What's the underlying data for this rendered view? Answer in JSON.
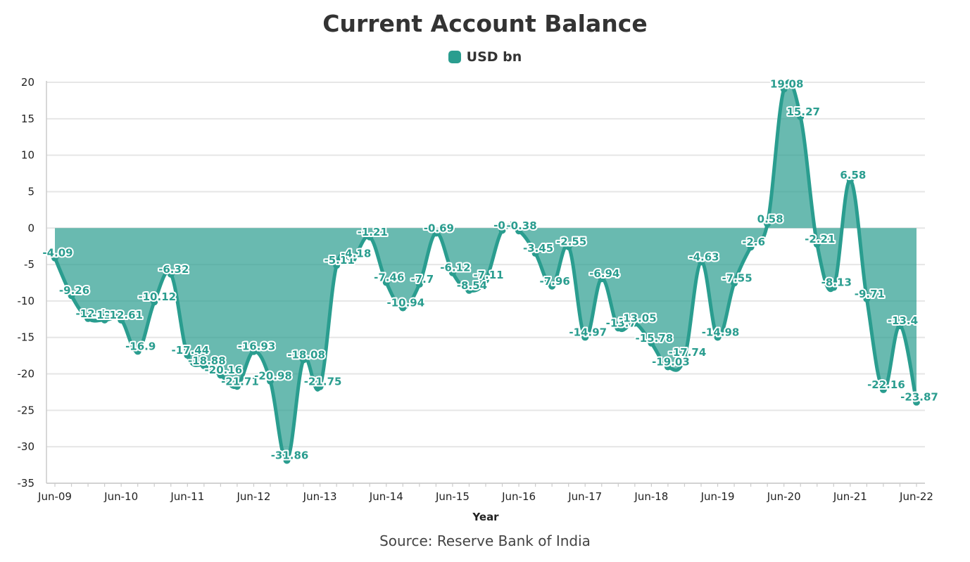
{
  "chart_data": {
    "type": "area",
    "title": "Current Account Balance",
    "xlabel": "Year",
    "ylabel": "",
    "source": "Source: Reserve Bank of India",
    "ylim": [
      -35,
      20
    ],
    "yticks": [
      20,
      15,
      10,
      5,
      0,
      -5,
      -10,
      -15,
      -20,
      -25,
      -30,
      -35
    ],
    "grid": true,
    "legend_position": "top-center",
    "color": "#2a9d8f",
    "x": [
      "Jun-09",
      "Sep-09",
      "Dec-09",
      "Mar-10",
      "Jun-10",
      "Sep-10",
      "Dec-10",
      "Mar-11",
      "Jun-11",
      "Sep-11",
      "Dec-11",
      "Mar-12",
      "Jun-12",
      "Sep-12",
      "Dec-12",
      "Mar-13",
      "Jun-13",
      "Sep-13",
      "Dec-13",
      "Mar-14",
      "Jun-14",
      "Sep-14",
      "Dec-14",
      "Mar-15",
      "Jun-15",
      "Sep-15",
      "Dec-15",
      "Mar-16",
      "Jun-16",
      "Sep-16",
      "Dec-16",
      "Mar-17",
      "Jun-17",
      "Sep-17",
      "Dec-17",
      "Mar-18",
      "Jun-18",
      "Sep-18",
      "Dec-18",
      "Mar-19",
      "Jun-19",
      "Sep-19",
      "Dec-19",
      "Mar-20",
      "Jun-20",
      "Sep-20",
      "Dec-20",
      "Mar-21",
      "Jun-21",
      "Sep-21",
      "Dec-21",
      "Mar-22",
      "Jun-22"
    ],
    "x_tick_labels": [
      "Jun-09",
      "Jun-10",
      "Jun-11",
      "Jun-12",
      "Jun-13",
      "Jun-14",
      "Jun-15",
      "Jun-16",
      "Jun-17",
      "Jun-18",
      "Jun-19",
      "Jun-20",
      "Jun-21",
      "Jun-22"
    ],
    "series": [
      {
        "name": "USD bn",
        "values": [
          -4.09,
          -9.26,
          -12.4,
          -12.6,
          -12.61,
          -16.9,
          -10.12,
          -6.32,
          -17.44,
          -18.88,
          -20.16,
          -21.71,
          -16.93,
          -20.98,
          -31.86,
          -18.08,
          -21.75,
          -5.11,
          -4.18,
          -1.21,
          -7.46,
          -10.94,
          -7.7,
          -0.69,
          -6.12,
          -8.54,
          -7.11,
          -0.3,
          -0.38,
          -3.45,
          -7.96,
          -2.55,
          -14.97,
          -6.94,
          -13.7,
          -13.05,
          -15.78,
          -19.03,
          -17.74,
          -4.63,
          -14.98,
          -7.55,
          -2.6,
          0.58,
          19.08,
          15.27,
          -2.21,
          -8.13,
          6.58,
          -9.71,
          -22.16,
          -13.4,
          -23.87
        ],
        "data_labels": [
          "-4.09",
          "-9.26",
          "-12.4",
          "-12.6",
          "-12.61",
          "-16.9",
          "-10.12",
          "-6.32",
          "-17.44",
          "-18.88",
          "-20.16",
          "-21.71",
          "-16.93",
          "-20.98",
          "-31.86",
          "-18.08",
          "-21.75",
          "-5.11",
          "-4.18",
          "-1.21",
          "-7.46",
          "-10.94",
          "-7.7",
          "-0.69",
          "-6.12",
          "-8.54",
          "-7.11",
          "-0.3",
          "-0.38",
          "-3.45",
          "-7.96",
          "-2.55",
          "-14.97",
          "-6.94",
          "-13.7",
          "-13.05",
          "-15.78",
          "-19.03",
          "-17.74",
          "-4.63",
          "-14.98",
          "-7.55",
          "-2.6",
          "0.58",
          "19.08",
          "15.27",
          "-2.21",
          "-8.13",
          "6.58",
          "-9.71",
          "-22.16",
          "-13.4",
          "-23.87"
        ]
      }
    ]
  }
}
